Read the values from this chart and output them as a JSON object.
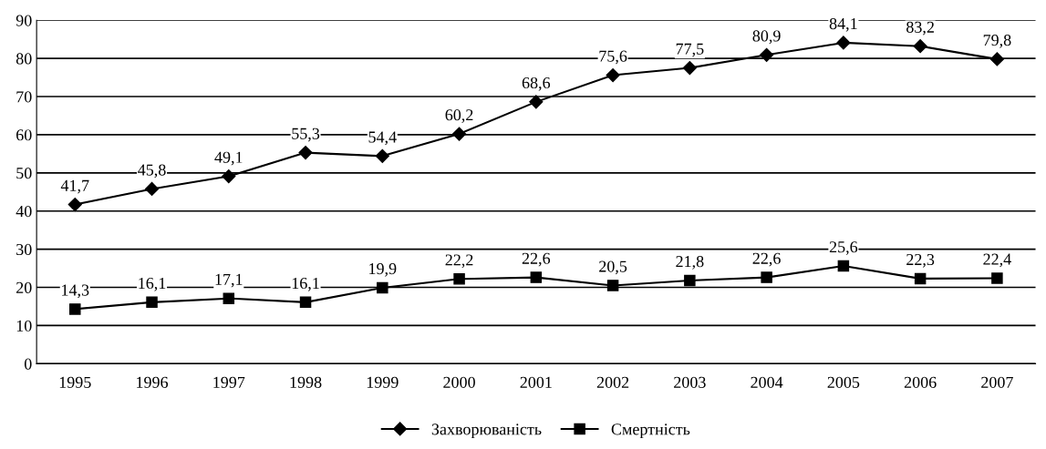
{
  "chart_data": {
    "type": "line",
    "categories": [
      "1995",
      "1996",
      "1997",
      "1998",
      "1999",
      "2000",
      "2001",
      "2002",
      "2003",
      "2004",
      "2005",
      "2006",
      "2007"
    ],
    "series": [
      {
        "name": "Захворюваність",
        "color": "#000000",
        "marker": "diamond",
        "values": [
          41.7,
          45.8,
          49.1,
          55.3,
          54.4,
          60.2,
          68.6,
          75.6,
          77.5,
          80.9,
          84.1,
          83.2,
          79.8
        ],
        "value_labels": [
          "41,7",
          "45,8",
          "49,1",
          "55,3",
          "54,4",
          "60,2",
          "68,6",
          "75,6",
          "77,5",
          "80,9",
          "84,1",
          "83,2",
          "79,8"
        ]
      },
      {
        "name": "Смертність",
        "color": "#000000",
        "marker": "square",
        "values": [
          14.3,
          16.1,
          17.1,
          16.1,
          19.9,
          22.2,
          22.6,
          20.5,
          21.8,
          22.6,
          25.6,
          22.3,
          22.4
        ],
        "value_labels": [
          "14,3",
          "16,1",
          "17,1",
          "16,1",
          "19,9",
          "22,2",
          "22,6",
          "20,5",
          "21,8",
          "22,6",
          "25,6",
          "22,3",
          "22,4"
        ]
      }
    ],
    "ylim": [
      0,
      90
    ],
    "yticks": [
      0,
      10,
      20,
      30,
      40,
      50,
      60,
      70,
      80,
      90
    ],
    "grid": "y",
    "legend": "bottom",
    "line_style": "solid"
  }
}
